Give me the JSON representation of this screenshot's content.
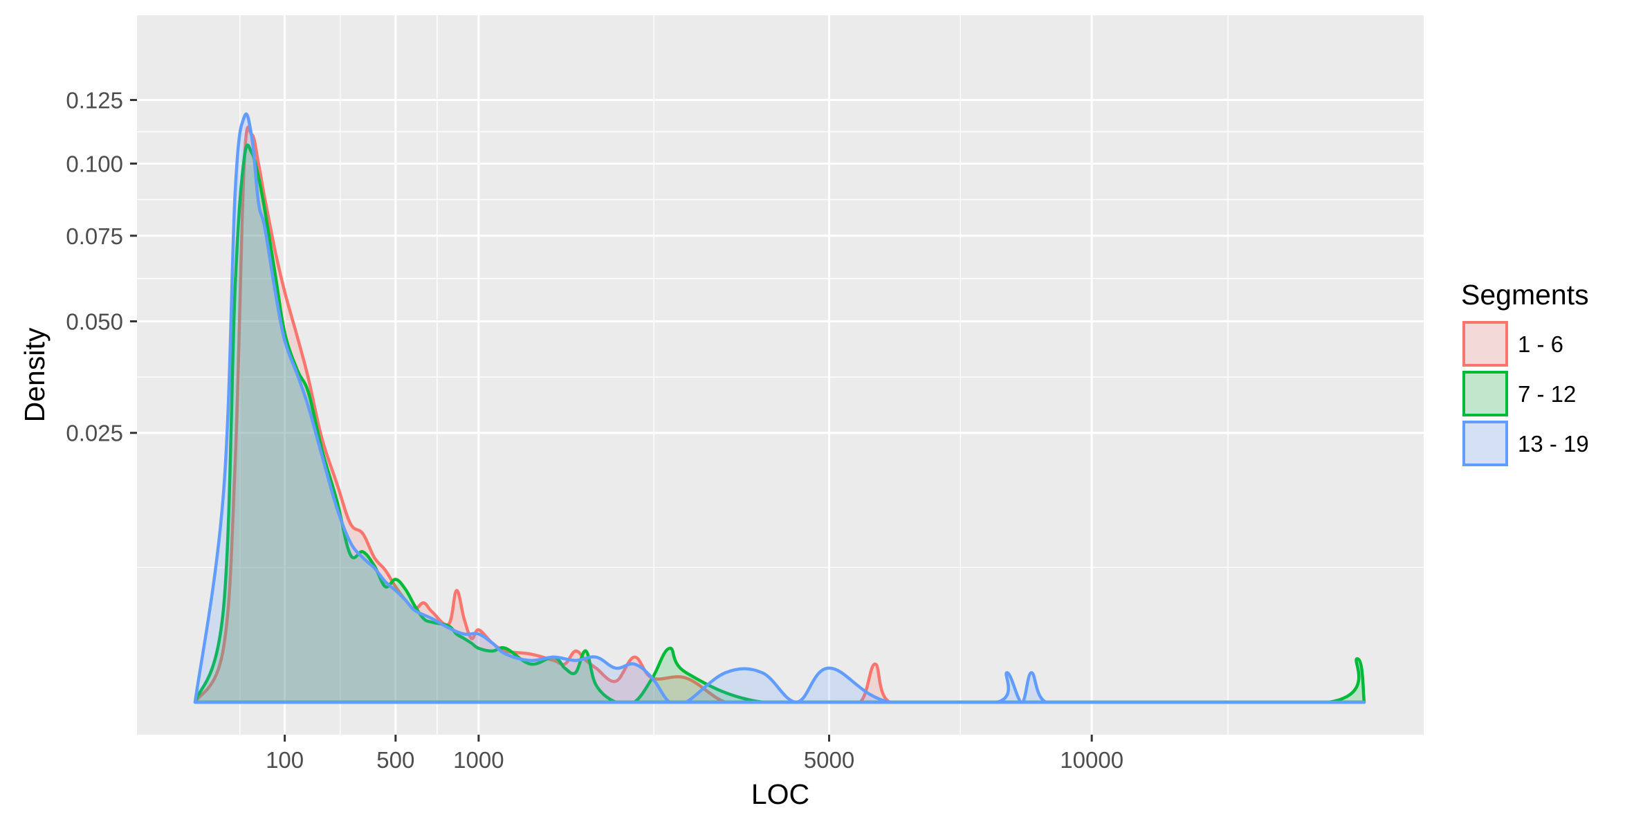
{
  "chart_data": {
    "type": "area",
    "title": "",
    "xlabel": "LOC",
    "ylabel": "Density",
    "x_ticks": [
      {
        "value": 100,
        "label": "100"
      },
      {
        "value": 500,
        "label": "500"
      },
      {
        "value": 1000,
        "label": "1000"
      },
      {
        "value": 5000,
        "label": "5000"
      },
      {
        "value": 10000,
        "label": "10000"
      }
    ],
    "y_ticks": [
      {
        "value": 0.025,
        "label": "0.025"
      },
      {
        "value": 0.05,
        "label": "0.050"
      },
      {
        "value": 0.075,
        "label": "0.075"
      },
      {
        "value": 0.1,
        "label": "0.100"
      },
      {
        "value": 0.125,
        "label": "0.125"
      }
    ],
    "grid": true,
    "legend": {
      "title": "Segments",
      "position": "right"
    },
    "series": [
      {
        "name": "1 - 6",
        "color": "#F8766D",
        "fill": "rgba(248,118,109,0.2)",
        "x": [
          0,
          10,
          20,
          30,
          40,
          50,
          60,
          80,
          100,
          130,
          160,
          200,
          250,
          300,
          350,
          400,
          450,
          500,
          550,
          600,
          650,
          700,
          800,
          850,
          900,
          950,
          1000,
          1100,
          1200,
          1400,
          1600,
          1700,
          1800,
          1900,
          2000,
          2200,
          2400,
          2600,
          3000,
          3500,
          4000,
          5000,
          5500,
          5750,
          6000,
          7000,
          10000,
          17000
        ],
        "y": [
          0.0,
          0.001,
          0.02,
          0.1,
          0.111,
          0.1,
          0.088,
          0.07,
          0.058,
          0.046,
          0.036,
          0.024,
          0.0165,
          0.011,
          0.0098,
          0.0072,
          0.006,
          0.0046,
          0.0036,
          0.003,
          0.0034,
          0.0028,
          0.0021,
          0.0043,
          0.0024,
          0.0014,
          0.0018,
          0.0012,
          0.0009,
          0.0008,
          0.0006,
          0.0005,
          0.0009,
          0.0006,
          0.0004,
          0.00015,
          0.0007,
          0.0002,
          0.0002,
          0.0,
          0.0,
          0.0,
          0.0,
          0.0005,
          0.0,
          0.0,
          0.0,
          0.0
        ]
      },
      {
        "name": "7 - 12",
        "color": "#00BA38",
        "fill": "rgba(0,186,56,0.2)",
        "x": [
          0,
          10,
          20,
          30,
          40,
          50,
          60,
          80,
          100,
          130,
          160,
          200,
          250,
          300,
          350,
          400,
          450,
          500,
          550,
          600,
          650,
          700,
          800,
          850,
          900,
          950,
          1000,
          1100,
          1200,
          1400,
          1600,
          1700,
          1800,
          1900,
          2000,
          2200,
          2400,
          2600,
          2800,
          3000,
          4000,
          6000,
          10000,
          16000,
          16800,
          17000
        ],
        "y": [
          0.0,
          0.003,
          0.06,
          0.102,
          0.104,
          0.095,
          0.084,
          0.063,
          0.047,
          0.038,
          0.033,
          0.022,
          0.014,
          0.0075,
          0.0078,
          0.0064,
          0.0046,
          0.0052,
          0.0044,
          0.0032,
          0.0024,
          0.0022,
          0.002,
          0.0016,
          0.0014,
          0.0012,
          0.001,
          0.0009,
          0.001,
          0.0005,
          0.0007,
          0.0004,
          0.0003,
          0.0009,
          0.0001,
          0.0,
          0.0,
          0.0002,
          0.001,
          0.0003,
          0.0,
          0.0,
          0.0,
          0.0,
          0.00065,
          0.0
        ]
      },
      {
        "name": "13 - 19",
        "color": "#619CFF",
        "fill": "rgba(97,156,255,0.2)",
        "x": [
          0,
          10,
          20,
          30,
          40,
          50,
          60,
          80,
          100,
          130,
          160,
          200,
          250,
          300,
          350,
          400,
          450,
          500,
          550,
          600,
          700,
          800,
          900,
          1000,
          1100,
          1200,
          1400,
          1600,
          1800,
          2000,
          2200,
          2400,
          2600,
          2800,
          3000,
          3500,
          4000,
          4500,
          5000,
          6000,
          8000,
          8200,
          8500,
          8700,
          9000,
          10000,
          17000
        ],
        "y": [
          0.0,
          0.015,
          0.09,
          0.118,
          0.11,
          0.086,
          0.078,
          0.058,
          0.045,
          0.037,
          0.03,
          0.021,
          0.013,
          0.0088,
          0.0072,
          0.0062,
          0.005,
          0.0043,
          0.0036,
          0.0029,
          0.0024,
          0.0019,
          0.0016,
          0.0016,
          0.0012,
          0.0008,
          0.0006,
          0.0007,
          0.0006,
          0.0007,
          0.0004,
          0.0005,
          0.0002,
          0.0,
          0.0,
          0.0003,
          0.0003,
          0.0,
          0.0004,
          0.0,
          0.0,
          0.0003,
          0.0,
          0.0003,
          0.0,
          0.0,
          0.0
        ]
      }
    ]
  }
}
